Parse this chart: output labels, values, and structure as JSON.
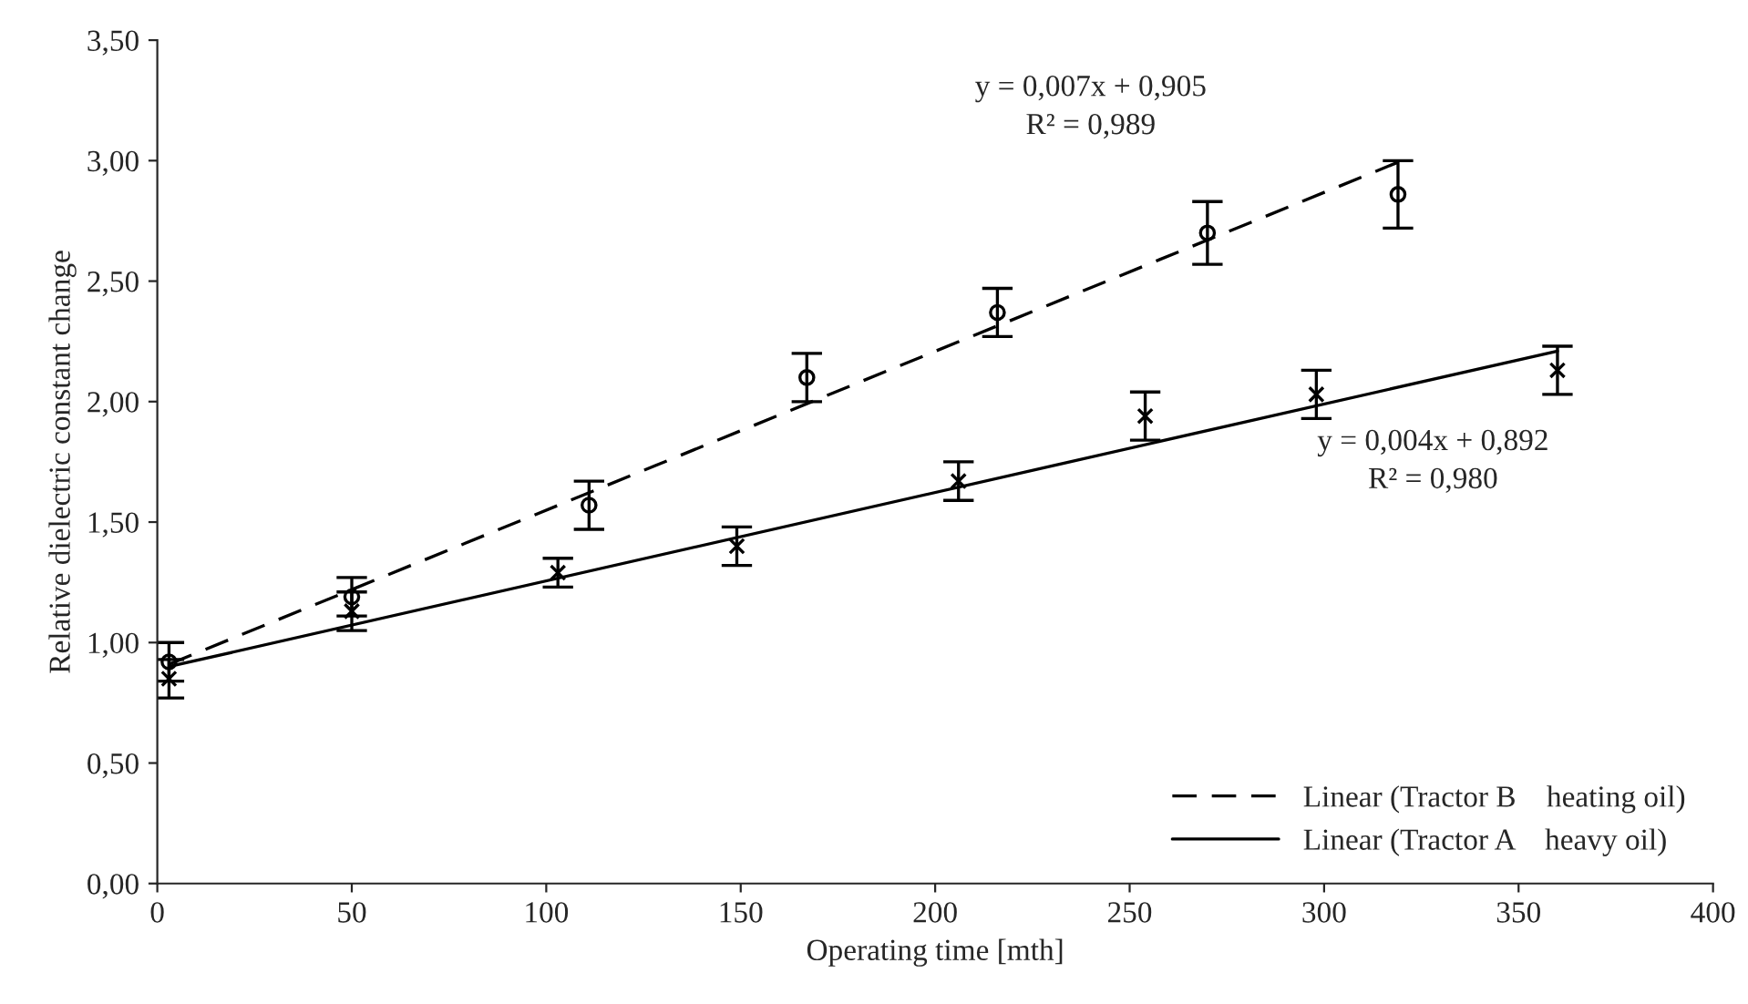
{
  "chart_data": {
    "type": "scatter",
    "xlabel": "Operating time [mth]",
    "ylabel": "Relative dielectric constant change",
    "xlim": [
      0,
      400
    ],
    "xticks": [
      0,
      50,
      100,
      150,
      200,
      250,
      300,
      350,
      400
    ],
    "ylim": [
      0,
      3.5
    ],
    "yticks": [
      {
        "value": 0,
        "label": "0,00"
      },
      {
        "value": 0.5,
        "label": "0,50"
      },
      {
        "value": 1,
        "label": "1,00"
      },
      {
        "value": 1.5,
        "label": "1,50"
      },
      {
        "value": 2,
        "label": "2,00"
      },
      {
        "value": 2.5,
        "label": "2,50"
      },
      {
        "value": 3,
        "label": "3,00"
      },
      {
        "value": 3.5,
        "label": "3,50"
      }
    ],
    "grid": false,
    "legend": "bottom right",
    "series": [
      {
        "marker": "circle",
        "color": "#000000",
        "x": [
          3,
          50,
          111,
          167,
          216,
          270,
          319
        ],
        "values": [
          0.92,
          1.19,
          1.57,
          2.1,
          2.37,
          2.7,
          2.86
        ],
        "errors": [
          0.08,
          0.08,
          0.1,
          0.1,
          0.1,
          0.13,
          0.14
        ]
      },
      {
        "marker": "cross",
        "color": "#000000",
        "x": [
          3,
          50,
          103,
          149,
          206,
          254,
          298,
          360
        ],
        "values": [
          0.85,
          1.13,
          1.29,
          1.4,
          1.67,
          1.94,
          2.03,
          2.13
        ],
        "errors": [
          0.08,
          0.08,
          0.06,
          0.08,
          0.08,
          0.1,
          0.1,
          0.1
        ]
      },
      {
        "type": "line",
        "name": "Linear (Tractor B    heating oil)",
        "line_style": "dashed",
        "color": "#000000",
        "x": [
          3,
          320
        ],
        "values": [
          0.91,
          3.0
        ]
      },
      {
        "type": "line",
        "name": "Linear (Tractor A    heavy oil)",
        "line_style": "solid",
        "color": "#000000",
        "x": [
          3,
          360
        ],
        "values": [
          0.9,
          2.21
        ]
      }
    ],
    "annotations": [
      "y = 0,007x + 0,905\nR² = 0,989",
      "y = 0,004x + 0,892\nR² = 0,980"
    ]
  }
}
